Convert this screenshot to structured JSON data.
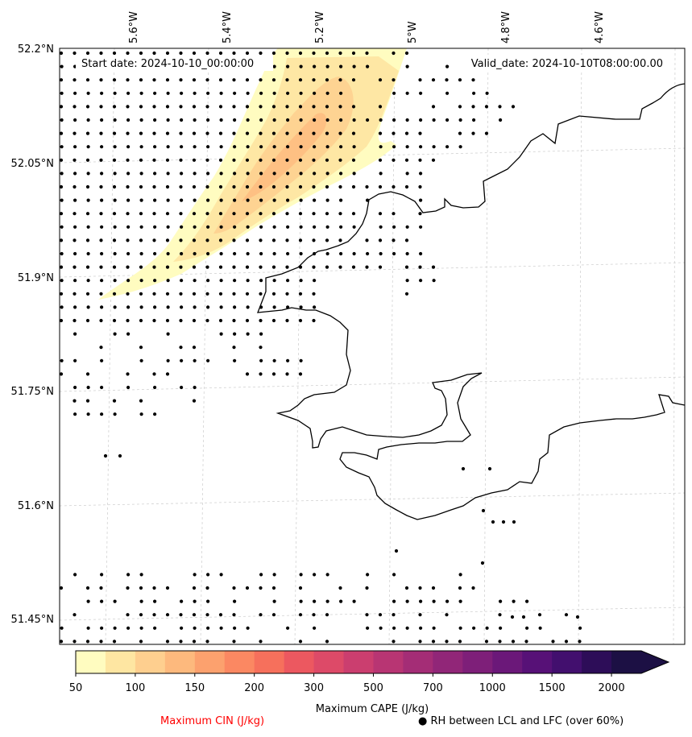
{
  "map": {
    "start_date_label": "Start date: 2024-10-10_00:00:00",
    "valid_date_label": "Valid_date: 2024-10-10T08:00:00.00",
    "lon_labels": [
      "5.6°W",
      "5.4°W",
      "5.2°W",
      "5°W",
      "4.8°W",
      "4.6°W"
    ],
    "lat_labels": [
      "52.2°N",
      "52.05°N",
      "51.9°N",
      "51.75°N",
      "51.6°N",
      "51.45°N"
    ],
    "coastline_color": "#000000",
    "gridline_color": "#cccccc",
    "dot_color": "#000000"
  },
  "colorbar": {
    "label": "Maximum CAPE (J/kg)",
    "tick_labels": [
      "50",
      "100",
      "150",
      "200",
      "300",
      "500",
      "700",
      "1000",
      "1500",
      "2000"
    ],
    "colormap": "magma_r",
    "colors": [
      "#fffcc0",
      "#fee6a2",
      "#fecf8f",
      "#fdb97d",
      "#fca16e",
      "#fb8862",
      "#f6705c",
      "#ec5860",
      "#dd4a68",
      "#cb3e6f",
      "#b83573",
      "#a42d76",
      "#912678",
      "#7e1f79",
      "#6b1879",
      "#571177",
      "#420f6e",
      "#2d0d58",
      "#1c1044"
    ]
  },
  "legend": {
    "cin_label": "Maximum CIN (J/kg)",
    "cin_color": "#ff0000",
    "rh_label": "● RH between LCL and LFC (over 60%)"
  }
}
